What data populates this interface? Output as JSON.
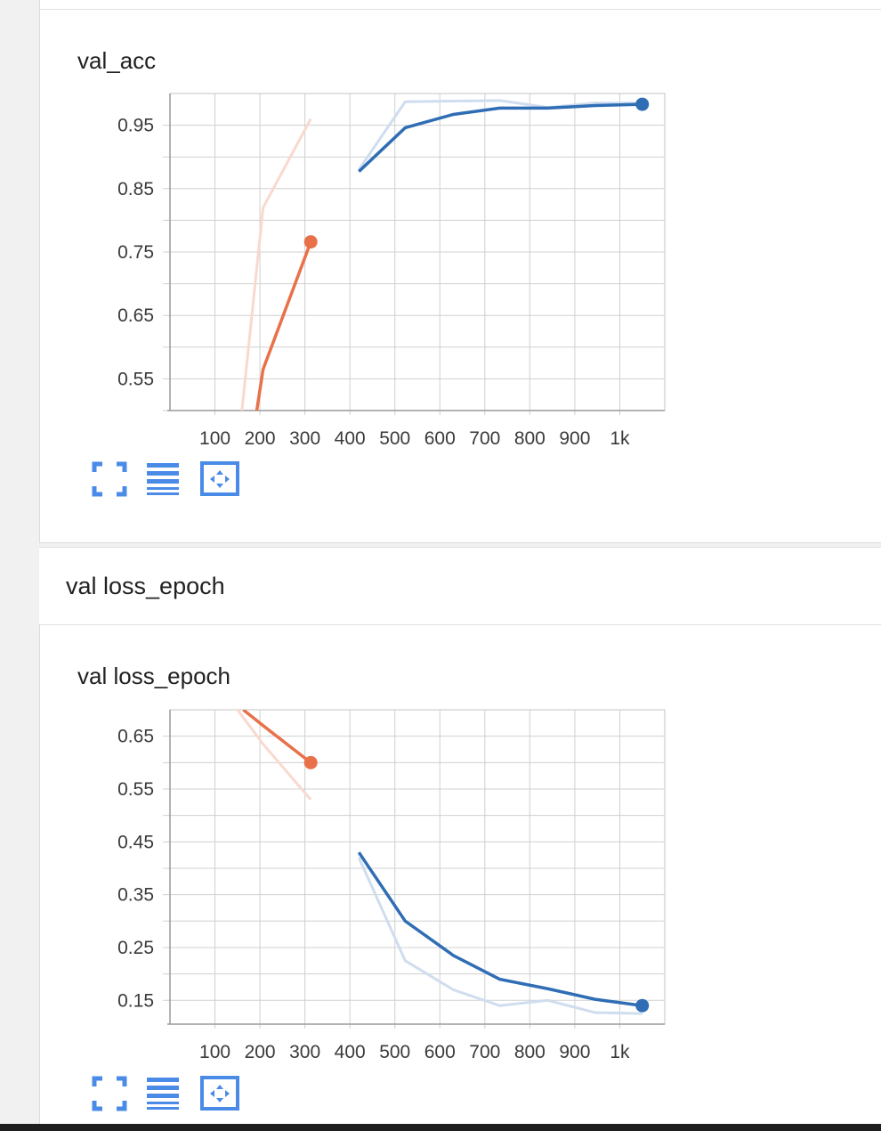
{
  "cards": [
    {
      "title": "val_acc",
      "chart_data": {
        "type": "line",
        "title": "val_acc",
        "xlabel": "",
        "ylabel": "",
        "xlim": [
          0,
          1100
        ],
        "ylim": [
          0.5,
          1.0
        ],
        "grid": true,
        "x_tick_values": [
          100,
          200,
          300,
          400,
          500,
          600,
          700,
          800,
          900,
          1000
        ],
        "x_tick_labels": [
          "100",
          "200",
          "300",
          "400",
          "500",
          "600",
          "700",
          "800",
          "900",
          "1k"
        ],
        "y_tick_values": [
          0.55,
          0.65,
          0.75,
          0.85,
          0.95
        ],
        "y_tick_labels": [
          "0.55",
          "0.65",
          "0.75",
          "0.85",
          "0.95"
        ],
        "series": [
          {
            "color": "#e8714a",
            "raw_color": "#f9d9ce",
            "raw_x": [
              160,
              207,
              313
            ],
            "raw_y": [
              0.5,
              0.82,
              0.96
            ],
            "x": [
              193,
              207,
              313
            ],
            "y": [
              0.5,
              0.565,
              0.766
            ]
          },
          {
            "color": "#2f6db5",
            "raw_color": "#cfddee",
            "raw_x": [
              420,
              523,
              630,
              733,
              840,
              945,
              1050
            ],
            "raw_y": [
              0.88,
              0.987,
              0.988,
              0.989,
              0.978,
              0.985,
              0.985
            ],
            "x": [
              420,
              523,
              630,
              733,
              840,
              945,
              1050
            ],
            "y": [
              0.877,
              0.946,
              0.967,
              0.977,
              0.977,
              0.981,
              0.983
            ]
          }
        ]
      }
    },
    {
      "title": "val loss_epoch",
      "chart_data": {
        "type": "line",
        "title": "val loss_epoch",
        "xlabel": "",
        "ylabel": "",
        "xlim": [
          0,
          1100
        ],
        "ylim": [
          0.105,
          0.7
        ],
        "grid": true,
        "x_tick_values": [
          100,
          200,
          300,
          400,
          500,
          600,
          700,
          800,
          900,
          1000
        ],
        "x_tick_labels": [
          "100",
          "200",
          "300",
          "400",
          "500",
          "600",
          "700",
          "800",
          "900",
          "1k"
        ],
        "y_tick_values": [
          0.15,
          0.25,
          0.35,
          0.45,
          0.55,
          0.65
        ],
        "y_tick_labels": [
          "0.15",
          "0.25",
          "0.35",
          "0.45",
          "0.55",
          "0.65"
        ],
        "series": [
          {
            "color": "#e8714a",
            "raw_color": "#f9d9ce",
            "raw_x": [
              150,
              207,
              313
            ],
            "raw_y": [
              0.7,
              0.635,
              0.53
            ],
            "x": [
              163,
              207,
              313
            ],
            "y": [
              0.7,
              0.67,
              0.6
            ]
          },
          {
            "color": "#2f6db5",
            "raw_color": "#cfddee",
            "raw_x": [
              420,
              523,
              630,
              733,
              840,
              945,
              1050
            ],
            "raw_y": [
              0.42,
              0.225,
              0.17,
              0.14,
              0.15,
              0.127,
              0.125
            ],
            "x": [
              420,
              523,
              630,
              733,
              840,
              945,
              1050
            ],
            "y": [
              0.43,
              0.3,
              0.235,
              0.19,
              0.172,
              0.152,
              0.14
            ]
          }
        ]
      }
    }
  ],
  "section_header": "val loss_epoch",
  "toolbar": {
    "fullscreen_icon": "fullscreen-icon",
    "data_icon": "data-table-icon",
    "fit_icon": "fit-domain-icon",
    "accent": "#4a8be8"
  }
}
